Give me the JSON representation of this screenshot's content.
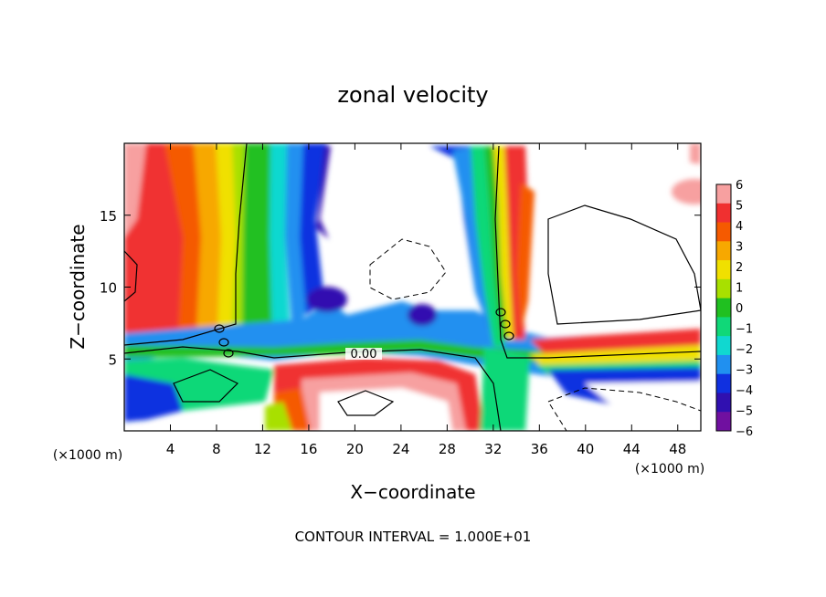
{
  "chart_data": {
    "type": "heatmap",
    "title": "zonal velocity",
    "xlabel": "X−coordinate",
    "ylabel": "Z−coordinate",
    "x_unit_left": "(×1000 m)",
    "x_unit_right": "(×1000 m)",
    "xlim": [
      0,
      50
    ],
    "ylim": [
      0,
      20
    ],
    "x_ticks": [
      4,
      8,
      12,
      16,
      20,
      24,
      28,
      32,
      36,
      40,
      44,
      48
    ],
    "y_ticks": [
      5,
      10,
      15
    ],
    "colorbar": {
      "levels": [
        6,
        5,
        4,
        3,
        2,
        1,
        0,
        -1,
        -2,
        -3,
        -4,
        -5,
        -6
      ],
      "labels": [
        "6",
        "5",
        "4",
        "3",
        "2",
        "1",
        "0",
        "−1",
        "−2",
        "−3",
        "−4",
        "−5",
        "−6"
      ],
      "colors": [
        "#f7a0a0",
        "#f03030",
        "#f55a00",
        "#f7a800",
        "#f0e000",
        "#a8e000",
        "#20c020",
        "#10d878",
        "#10d8d0",
        "#2090f0",
        "#1030e0",
        "#3010b0",
        "#7010a0"
      ]
    },
    "contour_label": "0.00",
    "footer": "CONTOUR INTERVAL = 1.000E+01"
  }
}
